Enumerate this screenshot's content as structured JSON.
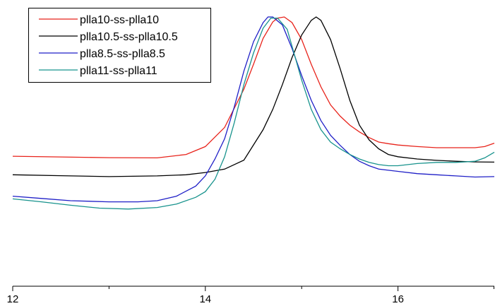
{
  "chart_data": {
    "type": "line",
    "title": "",
    "xlabel": "",
    "ylabel": "",
    "xlim": [
      12,
      17
    ],
    "ylim": [
      0,
      1
    ],
    "grid": false,
    "legend_position": "top-left",
    "x_ticks": [
      {
        "value": 12,
        "label": "12"
      },
      {
        "value": 14,
        "label": "14"
      },
      {
        "value": 16,
        "label": "16"
      }
    ],
    "x_minor_ticks": [
      13,
      15,
      17
    ],
    "series": [
      {
        "name": "plla10-ss-plla10",
        "color": "#e8231b",
        "points": [
          [
            12.0,
            0.382
          ],
          [
            12.5,
            0.379
          ],
          [
            13.0,
            0.376
          ],
          [
            13.5,
            0.375
          ],
          [
            13.8,
            0.39
          ],
          [
            14.0,
            0.425
          ],
          [
            14.2,
            0.51
          ],
          [
            14.4,
            0.68
          ],
          [
            14.5,
            0.79
          ],
          [
            14.6,
            0.905
          ],
          [
            14.7,
            0.978
          ],
          [
            14.75,
            0.995
          ],
          [
            14.82,
            1.0
          ],
          [
            14.9,
            0.975
          ],
          [
            15.0,
            0.9
          ],
          [
            15.1,
            0.79
          ],
          [
            15.2,
            0.69
          ],
          [
            15.3,
            0.61
          ],
          [
            15.4,
            0.56
          ],
          [
            15.5,
            0.52
          ],
          [
            15.6,
            0.49
          ],
          [
            15.7,
            0.465
          ],
          [
            15.8,
            0.445
          ],
          [
            15.9,
            0.438
          ],
          [
            16.0,
            0.432
          ],
          [
            16.2,
            0.425
          ],
          [
            16.4,
            0.42
          ],
          [
            16.6,
            0.42
          ],
          [
            16.8,
            0.42
          ],
          [
            16.9,
            0.425
          ],
          [
            17.0,
            0.44
          ]
        ]
      },
      {
        "name": "plla10.5-ss-plla10.5",
        "color": "#000000",
        "points": [
          [
            12.0,
            0.3
          ],
          [
            12.5,
            0.296
          ],
          [
            13.0,
            0.292
          ],
          [
            13.5,
            0.295
          ],
          [
            13.8,
            0.3
          ],
          [
            14.0,
            0.31
          ],
          [
            14.2,
            0.325
          ],
          [
            14.4,
            0.365
          ],
          [
            14.6,
            0.5
          ],
          [
            14.7,
            0.59
          ],
          [
            14.8,
            0.7
          ],
          [
            14.9,
            0.82
          ],
          [
            15.0,
            0.92
          ],
          [
            15.1,
            0.985
          ],
          [
            15.15,
            1.0
          ],
          [
            15.2,
            0.985
          ],
          [
            15.3,
            0.9
          ],
          [
            15.4,
            0.77
          ],
          [
            15.5,
            0.63
          ],
          [
            15.6,
            0.52
          ],
          [
            15.7,
            0.455
          ],
          [
            15.8,
            0.415
          ],
          [
            15.9,
            0.39
          ],
          [
            16.0,
            0.38
          ],
          [
            16.2,
            0.37
          ],
          [
            16.4,
            0.364
          ],
          [
            16.6,
            0.36
          ],
          [
            16.8,
            0.357
          ],
          [
            17.0,
            0.356
          ]
        ]
      },
      {
        "name": "plla8.5-ss-plla8.5",
        "color": "#1f1fc7",
        "points": [
          [
            12.0,
            0.205
          ],
          [
            12.3,
            0.195
          ],
          [
            12.6,
            0.185
          ],
          [
            13.0,
            0.18
          ],
          [
            13.3,
            0.18
          ],
          [
            13.5,
            0.185
          ],
          [
            13.7,
            0.205
          ],
          [
            13.9,
            0.25
          ],
          [
            14.0,
            0.295
          ],
          [
            14.1,
            0.37
          ],
          [
            14.2,
            0.46
          ],
          [
            14.3,
            0.6
          ],
          [
            14.4,
            0.76
          ],
          [
            14.5,
            0.89
          ],
          [
            14.6,
            0.975
          ],
          [
            14.65,
            1.0
          ],
          [
            14.7,
            1.0
          ],
          [
            14.8,
            0.965
          ],
          [
            14.9,
            0.86
          ],
          [
            15.0,
            0.74
          ],
          [
            15.1,
            0.63
          ],
          [
            15.2,
            0.54
          ],
          [
            15.3,
            0.475
          ],
          [
            15.4,
            0.43
          ],
          [
            15.5,
            0.39
          ],
          [
            15.6,
            0.36
          ],
          [
            15.7,
            0.34
          ],
          [
            15.8,
            0.325
          ],
          [
            16.0,
            0.315
          ],
          [
            16.2,
            0.305
          ],
          [
            16.4,
            0.3
          ],
          [
            16.6,
            0.295
          ],
          [
            16.8,
            0.29
          ],
          [
            17.0,
            0.292
          ]
        ]
      },
      {
        "name": "plla11-ss-plla11",
        "color": "#18938d",
        "points": [
          [
            12.0,
            0.193
          ],
          [
            12.3,
            0.18
          ],
          [
            12.6,
            0.165
          ],
          [
            12.9,
            0.152
          ],
          [
            13.2,
            0.148
          ],
          [
            13.5,
            0.155
          ],
          [
            13.7,
            0.17
          ],
          [
            13.9,
            0.2
          ],
          [
            14.0,
            0.225
          ],
          [
            14.1,
            0.28
          ],
          [
            14.2,
            0.38
          ],
          [
            14.3,
            0.53
          ],
          [
            14.4,
            0.7
          ],
          [
            14.5,
            0.84
          ],
          [
            14.6,
            0.95
          ],
          [
            14.68,
            0.995
          ],
          [
            14.75,
            0.995
          ],
          [
            14.85,
            0.945
          ],
          [
            14.9,
            0.87
          ],
          [
            15.0,
            0.72
          ],
          [
            15.1,
            0.59
          ],
          [
            15.2,
            0.5
          ],
          [
            15.3,
            0.445
          ],
          [
            15.4,
            0.415
          ],
          [
            15.5,
            0.39
          ],
          [
            15.6,
            0.37
          ],
          [
            15.7,
            0.355
          ],
          [
            15.8,
            0.345
          ],
          [
            15.9,
            0.34
          ],
          [
            16.0,
            0.34
          ],
          [
            16.2,
            0.35
          ],
          [
            16.4,
            0.355
          ],
          [
            16.6,
            0.355
          ],
          [
            16.8,
            0.36
          ],
          [
            16.9,
            0.375
          ],
          [
            17.0,
            0.4
          ]
        ]
      }
    ]
  }
}
